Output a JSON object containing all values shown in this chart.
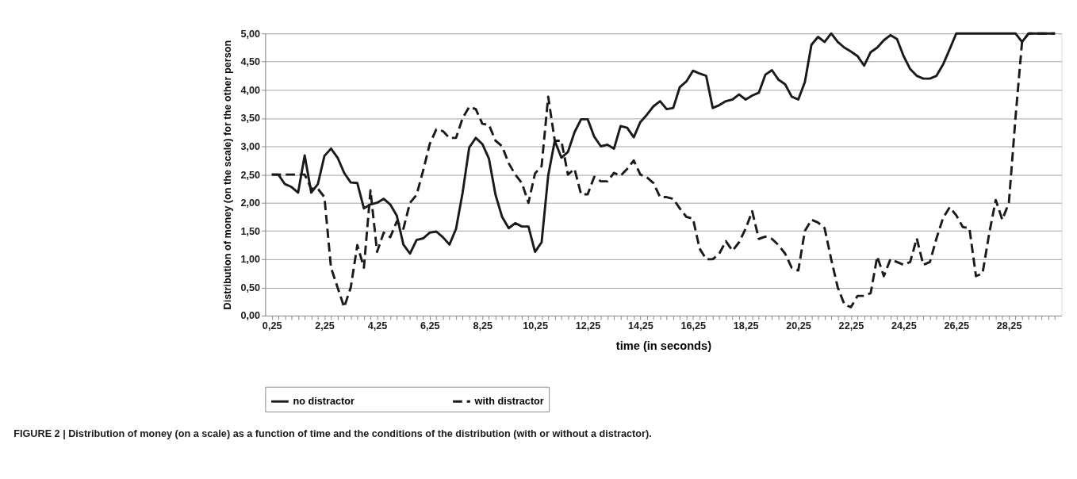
{
  "chart_data": {
    "type": "line",
    "ylabel": "Distribution of money (on the scale) for the other person",
    "xlabel": "time (in seconds)",
    "annotations": [
      "FIGURE 2 | Distribution of money (on a scale) as a function of time and the conditions of the distribution (with or without a distractor)."
    ],
    "categories": [
      "0,25",
      null,
      null,
      null,
      null,
      null,
      null,
      null,
      "2,25",
      null,
      null,
      null,
      null,
      null,
      null,
      null,
      "4,25",
      null,
      null,
      null,
      null,
      null,
      null,
      null,
      "6,25",
      null,
      null,
      null,
      null,
      null,
      null,
      null,
      "8,25",
      null,
      null,
      null,
      null,
      null,
      null,
      null,
      "10,25",
      null,
      null,
      null,
      null,
      null,
      null,
      null,
      "12,25",
      null,
      null,
      null,
      null,
      null,
      null,
      null,
      "14,25",
      null,
      null,
      null,
      null,
      null,
      null,
      null,
      "16,25",
      null,
      null,
      null,
      null,
      null,
      null,
      null,
      "18,25",
      null,
      null,
      null,
      null,
      null,
      null,
      null,
      "20,25",
      null,
      null,
      null,
      null,
      null,
      null,
      null,
      "22,25",
      null,
      null,
      null,
      null,
      null,
      null,
      null,
      "24,25",
      null,
      null,
      null,
      null,
      null,
      null,
      null,
      "26,25",
      null,
      null,
      null,
      null,
      null,
      null,
      null,
      "28,25",
      null,
      null,
      null,
      null,
      null,
      null,
      null
    ],
    "series": [
      {
        "name": "no distractor",
        "color": "#1a1a1a",
        "line_style": "solid",
        "values": [
          2.5,
          2.5,
          2.33,
          2.28,
          2.18,
          2.84,
          2.18,
          2.33,
          2.83,
          2.96,
          2.8,
          2.53,
          2.36,
          2.35,
          1.9,
          1.97,
          2.0,
          2.07,
          1.97,
          1.77,
          1.26,
          1.1,
          1.34,
          1.37,
          1.47,
          1.49,
          1.39,
          1.26,
          1.54,
          2.18,
          2.98,
          3.15,
          3.04,
          2.78,
          2.14,
          1.75,
          1.55,
          1.64,
          1.58,
          1.58,
          1.13,
          1.3,
          2.48,
          3.1,
          2.8,
          2.9,
          3.25,
          3.48,
          3.48,
          3.17,
          3.0,
          3.03,
          2.96,
          3.36,
          3.33,
          3.16,
          3.43,
          3.56,
          3.71,
          3.8,
          3.66,
          3.68,
          4.05,
          4.15,
          4.34,
          4.29,
          4.25,
          3.68,
          3.73,
          3.8,
          3.83,
          3.92,
          3.83,
          3.9,
          3.95,
          4.27,
          4.35,
          4.18,
          4.1,
          3.88,
          3.83,
          4.14,
          4.8,
          4.94,
          4.85,
          5.0,
          4.85,
          4.75,
          4.68,
          4.6,
          4.43,
          4.67,
          4.75,
          4.88,
          4.97,
          4.9,
          4.6,
          4.37,
          4.25,
          4.2,
          4.2,
          4.25,
          4.45,
          4.72,
          5.0,
          5.0,
          5.0,
          5.0,
          5.0,
          5.0,
          5.0,
          5.0,
          5.0,
          5.0,
          4.85,
          5.0,
          5.0,
          5.0,
          5.0,
          5.0
        ]
      },
      {
        "name": "with distractor",
        "color": "#1a1a1a",
        "line_style": "dashed",
        "values": [
          2.5,
          2.5,
          2.5,
          2.5,
          2.5,
          2.5,
          2.25,
          2.25,
          2.1,
          0.85,
          0.5,
          0.15,
          0.5,
          1.25,
          0.85,
          2.22,
          1.13,
          1.47,
          1.39,
          1.67,
          1.54,
          2.0,
          2.14,
          2.57,
          3.04,
          3.3,
          3.27,
          3.15,
          3.15,
          3.5,
          3.7,
          3.66,
          3.4,
          3.38,
          3.1,
          3.0,
          2.7,
          2.5,
          2.35,
          2.0,
          2.52,
          2.65,
          3.88,
          3.1,
          3.1,
          2.5,
          2.6,
          2.15,
          2.15,
          2.46,
          2.38,
          2.38,
          2.53,
          2.48,
          2.6,
          2.75,
          2.5,
          2.45,
          2.35,
          2.1,
          2.1,
          2.07,
          1.9,
          1.75,
          1.72,
          1.19,
          1.0,
          1.0,
          1.1,
          1.32,
          1.15,
          1.3,
          1.54,
          1.85,
          1.36,
          1.4,
          1.36,
          1.25,
          1.1,
          0.85,
          0.8,
          1.5,
          1.7,
          1.65,
          1.55,
          1.0,
          0.5,
          0.2,
          0.15,
          0.35,
          0.35,
          0.4,
          1.05,
          0.7,
          1.0,
          0.95,
          0.9,
          0.95,
          1.37,
          0.9,
          0.95,
          1.37,
          1.73,
          1.92,
          1.78,
          1.57,
          1.55,
          0.7,
          0.75,
          1.45,
          2.05,
          1.7,
          2.0,
          3.5,
          4.85,
          5.0,
          5.0,
          5.0,
          5.0,
          5.0
        ]
      }
    ],
    "ylim": [
      0,
      5
    ],
    "yticks": [
      {
        "value": 0,
        "label": "0,00"
      },
      {
        "value": 0.5,
        "label": "0,50"
      },
      {
        "value": 1,
        "label": "1,00"
      },
      {
        "value": 1.5,
        "label": "1,50"
      },
      {
        "value": 2,
        "label": "2,00"
      },
      {
        "value": 2.5,
        "label": "2,50"
      },
      {
        "value": 3,
        "label": "3,00"
      },
      {
        "value": 3.5,
        "label": "3,50"
      },
      {
        "value": 4,
        "label": "4,00"
      },
      {
        "value": 4.5,
        "label": "4,50"
      },
      {
        "value": 5,
        "label": "5,00"
      }
    ],
    "grid": "y",
    "legend": "bottom"
  }
}
